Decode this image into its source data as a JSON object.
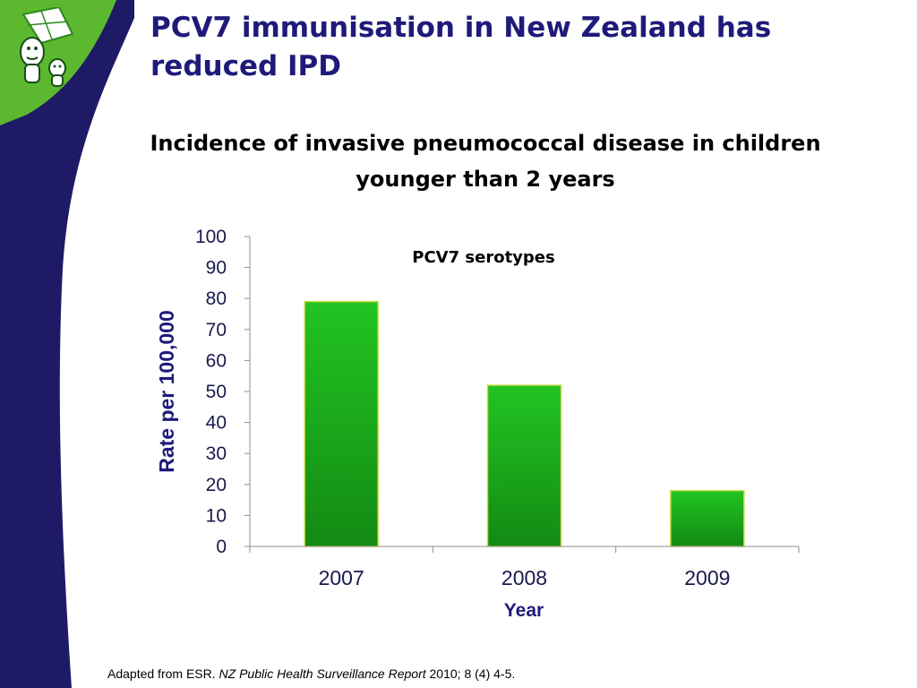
{
  "slide": {
    "title": "PCV7 immunisation in New Zealand has reduced IPD",
    "chart_title": "Incidence of invasive pneumococcal disease in children younger than 2 years",
    "footnote": {
      "prefix": "Adapted from ESR. ",
      "journal": "NZ Public Health Surveillance Report",
      "suffix": " 2010; 8 (4) 4-5."
    }
  },
  "colors": {
    "title": "#1f1a7a",
    "sidebar_navy": "#1f1a66",
    "sidebar_green": "#5cb82e",
    "bar_top": "#22c422",
    "bar_bottom": "#138a13",
    "bar_border": "#c8d84a",
    "axis_label": "#1f1a7a"
  },
  "chart_data": {
    "type": "bar",
    "title": "Incidence of invasive pneumococcal disease in children younger than 2 years",
    "annotation": "PCV7 serotypes",
    "categories": [
      "2007",
      "2008",
      "2009"
    ],
    "values": [
      79,
      52,
      18
    ],
    "xlabel": "Year",
    "ylabel": "Rate per 100,000",
    "ylim": [
      0,
      100
    ],
    "yticks": [
      0,
      10,
      20,
      30,
      40,
      50,
      60,
      70,
      80,
      90,
      100
    ],
    "grid": false,
    "legend": "none"
  }
}
